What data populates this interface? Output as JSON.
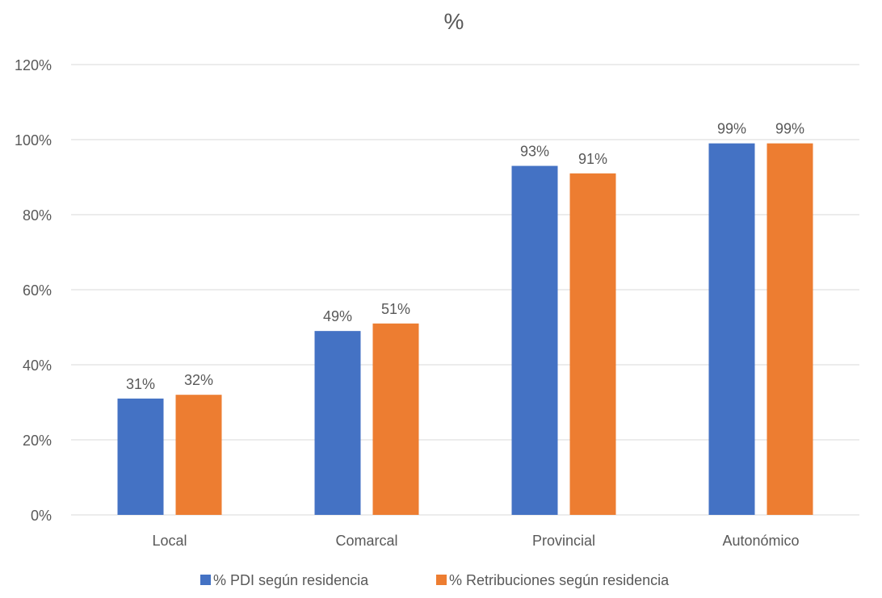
{
  "chart_data": {
    "type": "bar",
    "title": "%",
    "xlabel": "",
    "ylabel": "",
    "categories": [
      "Local",
      "Comarcal",
      "Provincial",
      "Autonómico"
    ],
    "series": [
      {
        "name": "% PDI según residencia",
        "values": [
          31,
          49,
          93,
          99
        ],
        "labels": [
          "31%",
          "49%",
          "93%",
          "99%"
        ],
        "color": "#4472C4"
      },
      {
        "name": "% Retribuciones según residencia",
        "values": [
          32,
          51,
          91,
          99
        ],
        "labels": [
          "32%",
          "51%",
          "91%",
          "99%"
        ],
        "color": "#ED7D31"
      }
    ],
    "ylim": [
      0,
      120
    ],
    "yticks": [
      0,
      20,
      40,
      60,
      80,
      100,
      120
    ],
    "ytick_labels": [
      "0%",
      "20%",
      "40%",
      "60%",
      "80%",
      "100%",
      "120%"
    ],
    "grid": true,
    "legend_position": "bottom",
    "gridline_color": "#D9D9D9",
    "text_color": "#595959"
  }
}
